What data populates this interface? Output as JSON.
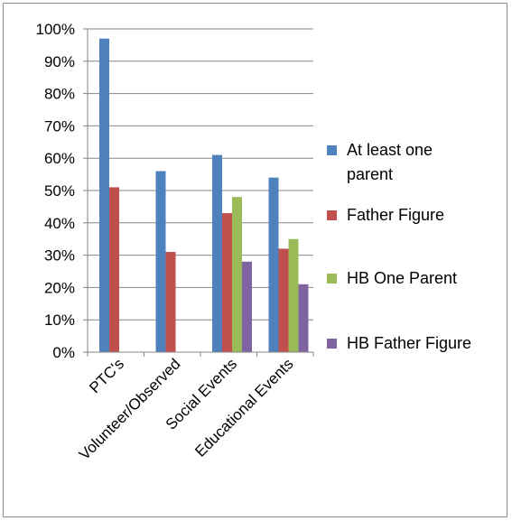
{
  "chart_data": {
    "type": "bar",
    "title": "",
    "xlabel": "",
    "ylabel": "",
    "ylim": [
      0,
      100
    ],
    "y_ticks": [
      "0%",
      "10%",
      "20%",
      "30%",
      "40%",
      "50%",
      "60%",
      "70%",
      "80%",
      "90%",
      "100%"
    ],
    "grid": true,
    "legend_position": "right",
    "categories": [
      "PTC's",
      "Volunteer/Observed",
      "Social Events",
      "Educational Events"
    ],
    "series": [
      {
        "name": "At least one parent",
        "color": "#4F81BD",
        "values": [
          97,
          56,
          61,
          54
        ]
      },
      {
        "name": "Father Figure",
        "color": "#C0504D",
        "values": [
          51,
          31,
          43,
          32
        ]
      },
      {
        "name": "HB One Parent",
        "color": "#9BBB59",
        "values": [
          null,
          null,
          48,
          35
        ]
      },
      {
        "name": "HB Father Figure",
        "color": "#8064A2",
        "values": [
          null,
          null,
          28,
          21
        ]
      }
    ]
  }
}
